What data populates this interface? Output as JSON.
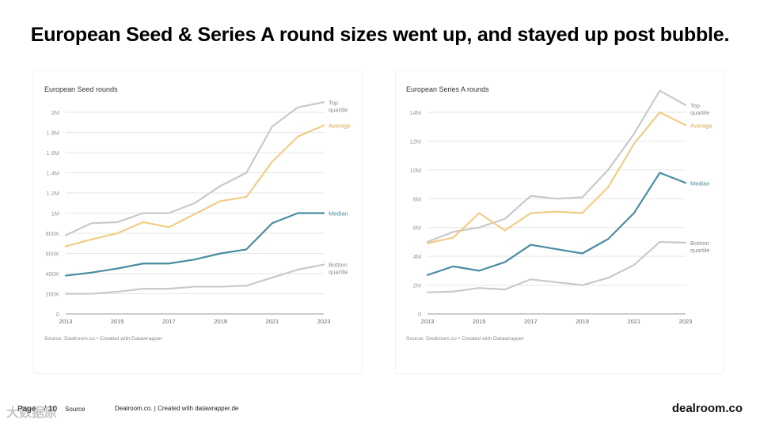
{
  "title": "European Seed & Series A round sizes went up, and stayed up post bubble.",
  "footer": {
    "page_label": "Page",
    "page_number": "/ 10",
    "source_label": "Source",
    "source_text": "Dealroom.co. | Created with datawrapper.de",
    "brand": "dealroom.co",
    "watermark": "大数据原"
  },
  "colors": {
    "top_quartile": "#c9c9c9",
    "average": "#f0cd84",
    "median": "#4a8ca3",
    "bottom_quartile": "#c9c9c9",
    "grid": "#e6e6e6",
    "axis_text": "#9a9a9a"
  },
  "chart_data": [
    {
      "type": "line",
      "title": "European Seed rounds",
      "source": "Source: Dealroom.co • Created with Datawrapper",
      "x": [
        2013,
        2014,
        2015,
        2016,
        2017,
        2018,
        2019,
        2020,
        2021,
        2022,
        2023
      ],
      "x_tick_labels": [
        "2013",
        "2015",
        "2017",
        "2019",
        "2021",
        "2023"
      ],
      "y_ticks": [
        0,
        200000,
        400000,
        600000,
        800000,
        1000000,
        1200000,
        1400000,
        1600000,
        1800000,
        2000000
      ],
      "y_tick_labels": [
        "0",
        "200K",
        "400K",
        "600K",
        "800K",
        "1M",
        "1.2M",
        "1.4M",
        "1.6M",
        "1.8M",
        "2M"
      ],
      "ylim": [
        0,
        2000000
      ],
      "series": [
        {
          "name": "Top quartile",
          "label_lines": [
            "Top",
            "quartile"
          ],
          "color_key": "top_quartile",
          "values": [
            780000,
            900000,
            910000,
            1000000,
            1000000,
            1100000,
            1270000,
            1400000,
            1860000,
            2050000,
            2100000
          ]
        },
        {
          "name": "Average",
          "label_lines": [
            "Average"
          ],
          "color_key": "average",
          "values": [
            670000,
            740000,
            800000,
            910000,
            860000,
            990000,
            1120000,
            1160000,
            1510000,
            1760000,
            1870000
          ]
        },
        {
          "name": "Median",
          "label_lines": [
            "Median"
          ],
          "color_key": "median",
          "values": [
            380000,
            410000,
            450000,
            500000,
            500000,
            540000,
            600000,
            640000,
            900000,
            1000000,
            1000000
          ]
        },
        {
          "name": "Bottom quartile",
          "label_lines": [
            "Bottom",
            "quartile"
          ],
          "color_key": "bottom_quartile",
          "values": [
            200000,
            200000,
            220000,
            250000,
            250000,
            270000,
            270000,
            280000,
            360000,
            440000,
            490000
          ]
        }
      ]
    },
    {
      "type": "line",
      "title": "European Series A rounds",
      "source": "Source: Dealroom.co • Created with Datawrapper",
      "x": [
        2013,
        2014,
        2015,
        2016,
        2017,
        2018,
        2019,
        2020,
        2021,
        2022,
        2023
      ],
      "x_tick_labels": [
        "2013",
        "2015",
        "2017",
        "2019",
        "2021",
        "2023"
      ],
      "y_ticks": [
        0,
        2000000,
        4000000,
        6000000,
        8000000,
        10000000,
        12000000,
        14000000
      ],
      "y_tick_labels": [
        "0",
        "2M",
        "4M",
        "6M",
        "8M",
        "10M",
        "12M",
        "14M"
      ],
      "ylim": [
        0,
        14000000
      ],
      "series": [
        {
          "name": "Top quartile",
          "label_lines": [
            "Top",
            "quartile"
          ],
          "color_key": "top_quartile",
          "values": [
            5000000,
            5700000,
            6000000,
            6600000,
            8200000,
            8000000,
            8100000,
            10000000,
            12500000,
            15500000,
            14500000
          ]
        },
        {
          "name": "Average",
          "label_lines": [
            "Average"
          ],
          "color_key": "average",
          "values": [
            4900000,
            5300000,
            7000000,
            5800000,
            7000000,
            7100000,
            7000000,
            8800000,
            11800000,
            14000000,
            13100000
          ]
        },
        {
          "name": "Median",
          "label_lines": [
            "Median"
          ],
          "color_key": "median",
          "values": [
            2700000,
            3300000,
            3000000,
            3600000,
            4800000,
            4500000,
            4200000,
            5200000,
            7000000,
            9800000,
            9100000
          ]
        },
        {
          "name": "Bottom quartile",
          "label_lines": [
            "Bottom",
            "quartile"
          ],
          "color_key": "bottom_quartile",
          "values": [
            1500000,
            1550000,
            1800000,
            1700000,
            2400000,
            2200000,
            2000000,
            2500000,
            3400000,
            5000000,
            4950000
          ]
        }
      ]
    }
  ]
}
